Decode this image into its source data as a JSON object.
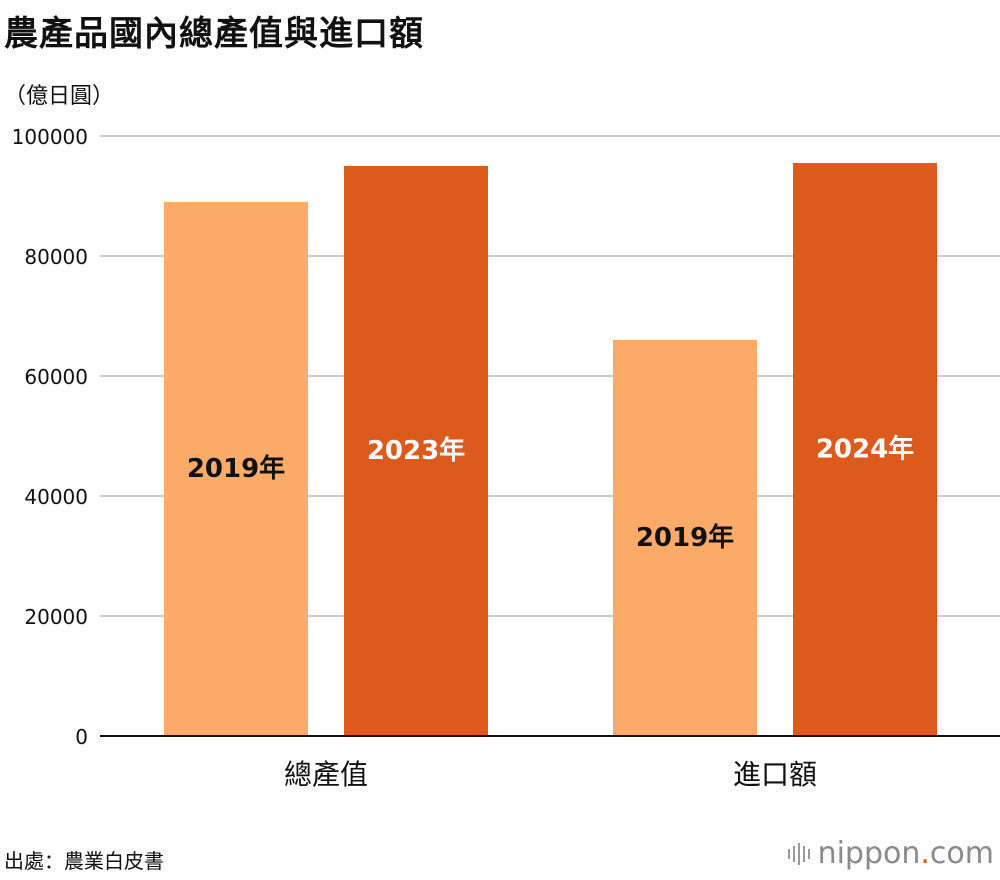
{
  "title": "農產品國內總產值與進口額",
  "unit": "（億日圓）",
  "source": "出處：農業白皮書",
  "brand": {
    "name": "nippon",
    "dot": ".",
    "tld": "com",
    "logo": "nippon-logo-icon"
  },
  "colors": {
    "light": "#fbaa68",
    "dark": "#dc5a1c",
    "grid": "#cccccc",
    "axis": "#111111"
  },
  "chart_data": {
    "type": "bar",
    "title": "農產品國內總產值與進口額",
    "ylabel": "（億日圓）",
    "ylim": [
      0,
      100000
    ],
    "yticks": [
      0,
      20000,
      40000,
      60000,
      80000,
      100000
    ],
    "categories": [
      "總產值",
      "進口額"
    ],
    "bars": [
      {
        "category": "總產值",
        "label": "2019年",
        "value": 89000,
        "shade": "light"
      },
      {
        "category": "總產值",
        "label": "2023年",
        "value": 95000,
        "shade": "dark"
      },
      {
        "category": "進口額",
        "label": "2019年",
        "value": 66000,
        "shade": "light"
      },
      {
        "category": "進口額",
        "label": "2024年",
        "value": 95500,
        "shade": "dark"
      }
    ]
  }
}
